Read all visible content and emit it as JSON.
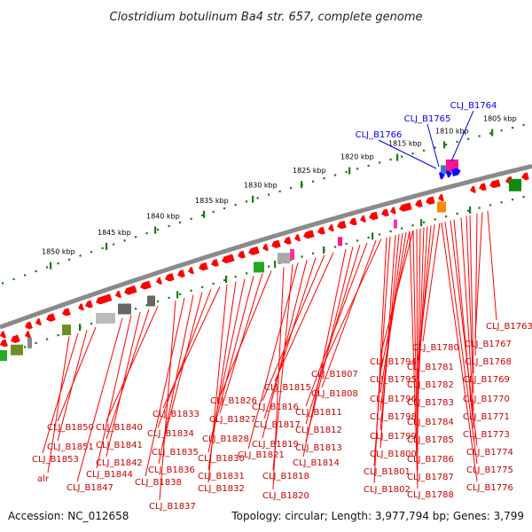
{
  "title": "Clostridium botulinum Ba4 str. 657, complete genome",
  "footer": {
    "accession": "Accession: NC_012658",
    "stats": "Topology: circular; Length: 3,977,794 bp; Genes: 3,799"
  },
  "colors": {
    "backbone": "#8a8a8a",
    "tick": "#1a7a1a",
    "gene": "#ff0000",
    "gene_label": "#cc0000",
    "highlight": "#0000ff"
  },
  "scale": {
    "ticks": [
      "1850 kbp",
      "1845 kbp",
      "1840 kbp",
      "1835 kbp",
      "1830 kbp",
      "1825 kbp",
      "1820 kbp",
      "1815 kbp",
      "1810 kbp",
      "1805 kbp"
    ]
  },
  "highlight_labels": [
    "CLJ_B1766",
    "CLJ_B1765",
    "CLJ_B1764"
  ],
  "gene_labels": [
    "CLJ_B1763",
    "CLJ_B1767",
    "CLJ_B1768",
    "CLJ_B1769",
    "CLJ_B1770",
    "CLJ_B1771",
    "CLJ_B1773",
    "CLJ_B1774",
    "CLJ_B1775",
    "CLJ_B1776",
    "CLJ_B1780",
    "CLJ_B1781",
    "CLJ_B1782",
    "CLJ_B1783",
    "CLJ_B1784",
    "CLJ_B1785",
    "CLJ_B1786",
    "CLJ_B1787",
    "CLJ_B1788",
    "CLJ_B1794",
    "CLJ_B1795",
    "CLJ_B1796",
    "CLJ_B1798",
    "CLJ_B1799",
    "CLJ_B1800",
    "CLJ_B1801",
    "CLJ_B1802",
    "CLJ_B1807",
    "CLJ_B1808",
    "CLJ_B1811",
    "CLJ_B1812",
    "CLJ_B1813",
    "CLJ_B1814",
    "CLJ_B1815",
    "CLJ_B1816",
    "CLJ_B1817",
    "CLJ_B1819",
    "CLJ_B1821",
    "CLJ_B1818",
    "CLJ_B1820",
    "CLJ_B1826",
    "CLJ_B1827",
    "CLJ_B1828",
    "CLJ_B1830",
    "CLJ_B1831",
    "CLJ_B1832",
    "CLJ_B1833",
    "CLJ_B1834",
    "CLJ_B1835",
    "CLJ_B1836",
    "CLJ_B1838",
    "CLJ_B1837",
    "CLJ_B1840",
    "CLJ_B1841",
    "CLJ_B1842",
    "CLJ_B1844",
    "CLJ_B1847",
    "CLJ_B1850",
    "CLJ_B1851",
    "CLJ_B1853",
    "alr"
  ]
}
